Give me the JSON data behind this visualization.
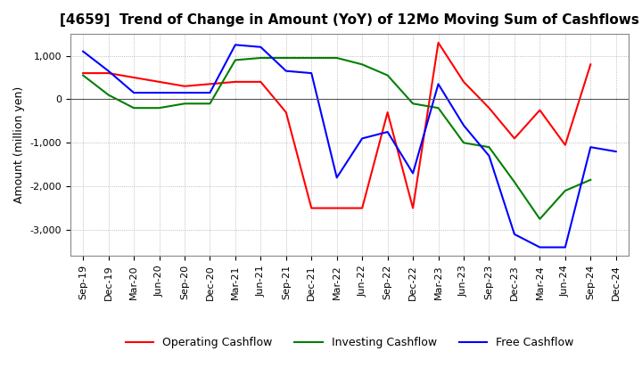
{
  "title": "[4659]  Trend of Change in Amount (YoY) of 12Mo Moving Sum of Cashflows",
  "ylabel": "Amount (million yen)",
  "title_fontsize": 11,
  "label_fontsize": 9,
  "tick_fontsize": 8,
  "background_color": "#ffffff",
  "grid_color": "#aaaaaa",
  "x_labels": [
    "Sep-19",
    "Dec-19",
    "Mar-20",
    "Jun-20",
    "Sep-20",
    "Dec-20",
    "Mar-21",
    "Jun-21",
    "Sep-21",
    "Dec-21",
    "Mar-22",
    "Jun-22",
    "Sep-22",
    "Dec-22",
    "Mar-23",
    "Jun-23",
    "Sep-23",
    "Dec-23",
    "Mar-24",
    "Jun-24",
    "Sep-24",
    "Dec-24"
  ],
  "operating_cashflow": [
    600,
    600,
    500,
    400,
    300,
    350,
    400,
    400,
    -300,
    -2500,
    -2500,
    -2500,
    -300,
    -2500,
    1300,
    400,
    -200,
    -900,
    -250,
    -1050,
    800,
    null
  ],
  "investing_cashflow": [
    550,
    100,
    -200,
    -200,
    -100,
    -100,
    900,
    950,
    950,
    950,
    950,
    800,
    550,
    -100,
    -200,
    -1000,
    -1100,
    -1900,
    -2750,
    -2100,
    -1850,
    null
  ],
  "free_cashflow": [
    1100,
    650,
    150,
    150,
    150,
    150,
    1250,
    1200,
    650,
    600,
    -1800,
    -900,
    -750,
    -1700,
    350,
    -600,
    -1300,
    -3100,
    -3400,
    -3400,
    -1100,
    -1200
  ],
  "ylim": [
    -3600,
    1500
  ],
  "yticks": [
    -3000,
    -2000,
    -1000,
    0,
    1000
  ],
  "line_colors": {
    "operating": "#ff0000",
    "investing": "#008000",
    "free": "#0000ff"
  },
  "legend_labels": [
    "Operating Cashflow",
    "Investing Cashflow",
    "Free Cashflow"
  ]
}
